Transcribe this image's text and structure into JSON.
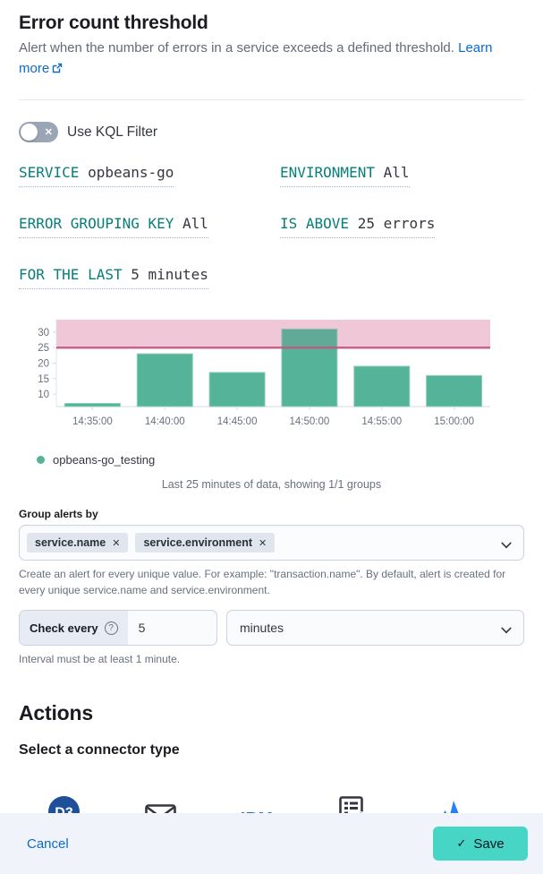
{
  "header": {
    "title": "Error count threshold",
    "description": "Alert when the number of errors in a service exceeds a defined threshold.",
    "learn_more_label": "Learn more"
  },
  "kql_toggle": {
    "label": "Use KQL Filter",
    "state": "off"
  },
  "expressions": [
    {
      "label": "SERVICE",
      "value": "opbeans-go"
    },
    {
      "label": "ENVIRONMENT",
      "value": "All"
    },
    {
      "label": "ERROR GROUPING KEY",
      "value": "All"
    },
    {
      "label": "IS ABOVE",
      "value": "25 errors"
    },
    {
      "label": "FOR THE LAST",
      "value": "5 minutes"
    }
  ],
  "chart_data": {
    "type": "bar",
    "title": "",
    "xlabel": "",
    "ylabel": "",
    "categories": [
      "14:35:00",
      "14:40:00",
      "14:45:00",
      "14:50:00",
      "14:55:00",
      "15:00:00"
    ],
    "values": [
      7,
      23,
      17,
      31,
      19,
      16
    ],
    "series_name": "opbeans-go_testing",
    "threshold": 25,
    "y_ticks": [
      10,
      15,
      20,
      25,
      30
    ],
    "ylim": [
      6,
      34
    ],
    "grid": false,
    "legend_position": "bottom-left",
    "bar_color": "#54B399",
    "bar_edge_color": "#8ED0BA",
    "threshold_line_color": "#C25980",
    "threshold_fill_color": "#F4D3DF"
  },
  "legend": {
    "label": "opbeans-go_testing"
  },
  "chart_caption": "Last 25 minutes of data, showing 1/1 groups",
  "group_alerts": {
    "label": "Group alerts by",
    "chips": [
      "service.name",
      "service.environment"
    ],
    "help": "Create an alert for every unique value. For example: \"transaction.name\". By default, alert is created for every unique service.name and service.environment."
  },
  "schedule": {
    "label": "Check every",
    "value": "5",
    "unit": "minutes",
    "help": "Interval must be at least 1 minute."
  },
  "actions": {
    "title": "Actions",
    "subtitle": "Select a connector type",
    "connectors": [
      {
        "label": "D3 Security",
        "icon": "d3-security-icon"
      },
      {
        "label": "Email",
        "icon": "email-icon"
      },
      {
        "label": "IBM Resilient",
        "icon": "ibm-resilient-icon"
      },
      {
        "label": "Index",
        "icon": "index-icon"
      },
      {
        "label": "Jira",
        "icon": "jira-icon"
      }
    ]
  },
  "footer": {
    "cancel_label": "Cancel",
    "save_label": "Save"
  },
  "icons": {
    "close": "✕",
    "check": "✓",
    "help": "?"
  },
  "colors": {
    "accent_teal_label": "#077E78",
    "link_blue": "#0B6BCB",
    "save_button_teal": "#47D5C5",
    "footer_background": "#F0F3FA",
    "toggle_off_gray": "#9AA5B6"
  }
}
